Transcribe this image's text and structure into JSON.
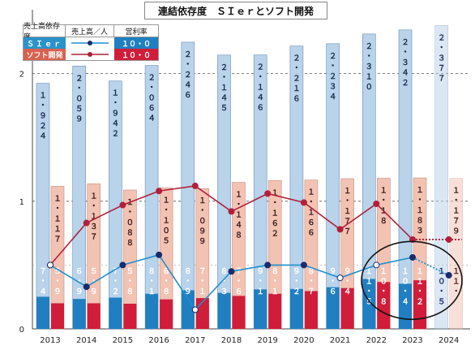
{
  "title": "連結依存度　ＳＩｅｒとソフト開発",
  "legend": {
    "headers": [
      "売上高依存度",
      "売上高／人",
      "営利率"
    ],
    "rows": [
      {
        "label": "ＳＩｅｒ",
        "margin_label": "１０・０",
        "bar_color": "#2a93c9"
      },
      {
        "label": "ソフト開発",
        "margin_label": "１０・０",
        "bar_color": "#d01d3a"
      }
    ]
  },
  "chart_data": {
    "type": "bar",
    "title": "連結依存度　ＳＩｅｒとソフト開発",
    "categories": [
      "2013",
      "2014",
      "2015",
      "2016",
      "2017",
      "2018",
      "2019",
      "2020",
      "2021",
      "2022",
      "2023",
      "2024"
    ],
    "y_ticks": [
      "0",
      "1",
      "2"
    ],
    "ylim": [
      0,
      2.5
    ],
    "grid": true,
    "series": [
      {
        "name": "ＳＩｅｒ",
        "kind": "dependency",
        "color": "#b8d3ea",
        "values": [
          1.924,
          2.059,
          1.942,
          2.064,
          2.246,
          2.145,
          2.146,
          2.216,
          2.234,
          2.31,
          2.342,
          2.377
        ],
        "labels": [
          "１・９２４",
          "２・０５９",
          "１・９４２",
          "２・０６４",
          "２・２４６",
          "２・１４５",
          "２・１４６",
          "２・２１６",
          "２・２３４",
          "２・３１０",
          "２・３４２",
          "２・３７７"
        ]
      },
      {
        "name": "ソフト開発",
        "kind": "dependency",
        "color": "#f2c3b3",
        "values": [
          1.117,
          1.137,
          1.088,
          1.105,
          1.099,
          1.148,
          1.162,
          1.166,
          1.177,
          1.18,
          1.183,
          1.179
        ],
        "labels": [
          "１・１１７",
          "１・１３７",
          "１・０８８",
          "１・１０５",
          "１・０９９",
          "１・１４８",
          "１・１６２",
          "１・１６６",
          "１・１７７",
          "１・１８",
          "１・１８３",
          "１・１７９"
        ]
      },
      {
        "name": "ＳＩｅｒ",
        "kind": "operating_margin",
        "color": "#1f7fc0",
        "values": [
          7.4,
          6.9,
          7.2,
          8.1,
          8.9,
          8.3,
          9.1,
          9.2,
          9.6,
          11.5,
          10.4,
          10.5
        ],
        "labels": [
          "７・４",
          "６・９",
          "７・２",
          "８・１",
          "８・９",
          "８・３",
          "９・１",
          "９・２",
          "９・６",
          "１１・５",
          "１０・４",
          "１０・５"
        ]
      },
      {
        "name": "ソフト開発",
        "kind": "operating_margin",
        "color": "#d01d3a",
        "values": [
          5.9,
          5.9,
          5.8,
          6.8,
          7.1,
          7.6,
          8.1,
          8.7,
          9.4,
          10.8,
          11.2,
          11.0
        ],
        "labels": [
          "５・９",
          "５・９",
          "５・８",
          "６・８",
          "７・１",
          "７・６",
          "８・１",
          "８・７",
          "９・４",
          "１０・８",
          "１１・２",
          "１１・"
        ]
      },
      {
        "name": "ＳＩｅｒ",
        "kind": "sales_per_person",
        "color": "#1f8fd0",
        "values": [
          0.5,
          0.33,
          0.5,
          0.58,
          0.15,
          0.45,
          0.5,
          0.5,
          0.4,
          0.5,
          0.56,
          0.42
        ]
      },
      {
        "name": "ソフト開発",
        "kind": "sales_per_person",
        "color": "#b0203a",
        "values": [
          0.5,
          0.83,
          0.97,
          1.08,
          1.12,
          0.92,
          1.06,
          0.99,
          0.78,
          0.98,
          0.7,
          0.7
        ]
      }
    ]
  }
}
